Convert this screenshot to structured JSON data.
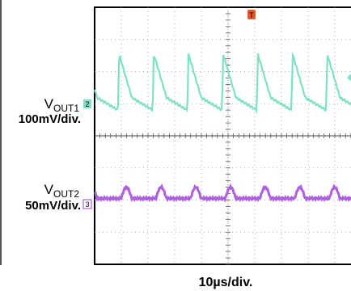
{
  "chart_data": {
    "type": "line",
    "title": "",
    "xlabel": "10µs/div.",
    "ylabel": "",
    "x_divisions": 10,
    "y_divisions": 8,
    "grid": true,
    "trigger_marker": "T",
    "series": [
      {
        "name": "VOUT1",
        "label_main": "V",
        "label_sub": "OUT1",
        "scale": "100mV/div.",
        "channel": "2",
        "color": "#7fe0c6",
        "ripple_period_div": 1.3,
        "ripple_pp_div": 1.75,
        "baseline_div": 2.55
      },
      {
        "name": "VOUT2",
        "label_main": "V",
        "label_sub": "OUT2",
        "scale": "50mV/div.",
        "channel": "3",
        "color": "#b05fe0",
        "ripple_period_div": 1.3,
        "ripple_pp_div": 0.35,
        "baseline_div": -1.95
      }
    ]
  }
}
